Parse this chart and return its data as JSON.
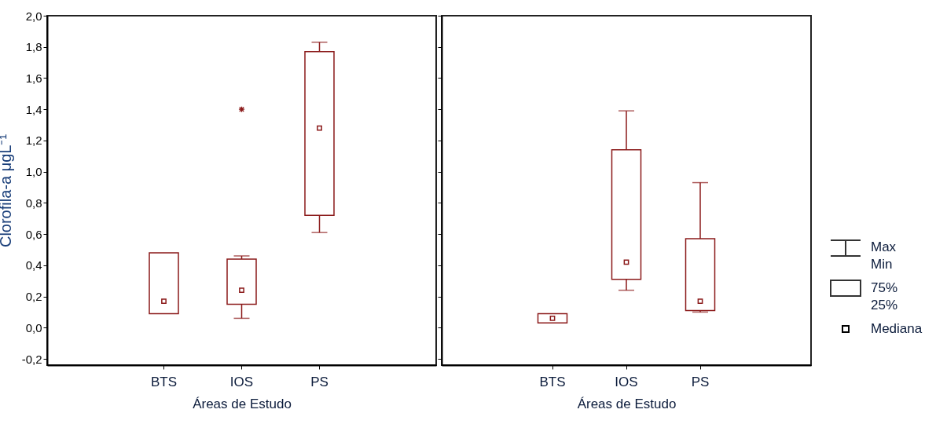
{
  "chart_data": [
    {
      "type": "box",
      "xlabel": "Áreas de Estudo",
      "ylabel": "Clorofila-a μgL⁻¹",
      "categories": [
        "BTS",
        "IOS",
        "PS"
      ],
      "color": "#8b1a1a",
      "marker": "square",
      "grid": false,
      "ylim": [
        -0.24,
        2.0
      ],
      "yticks": [
        {
          "value": -0.2,
          "label": "-0,2"
        },
        {
          "value": 0,
          "label": "0,0"
        },
        {
          "value": 0.2,
          "label": "0,2"
        },
        {
          "value": 0.4,
          "label": "0,4"
        },
        {
          "value": 0.6,
          "label": "0,6"
        },
        {
          "value": 0.8,
          "label": "0,8"
        },
        {
          "value": 1.0,
          "label": "1,0"
        },
        {
          "value": 1.2,
          "label": "1,2"
        },
        {
          "value": 1.4,
          "label": "1,4"
        },
        {
          "value": 1.6,
          "label": "1,6"
        },
        {
          "value": 1.8,
          "label": "1,8"
        },
        {
          "value": 2.0,
          "label": "2,0"
        }
      ],
      "boxes": [
        {
          "low": 0.09,
          "q1": 0.09,
          "median": 0.17,
          "q3": 0.48,
          "high": 0.48
        },
        {
          "low": 0.06,
          "q1": 0.15,
          "median": 0.24,
          "q3": 0.44,
          "high": 0.46,
          "outliers": [
            1.4
          ]
        },
        {
          "low": 0.61,
          "q1": 0.72,
          "median": 1.28,
          "q3": 1.77,
          "high": 1.83
        }
      ]
    },
    {
      "type": "box",
      "xlabel": "Áreas de Estudo",
      "categories": [
        "BTS",
        "IOS",
        "PS"
      ],
      "color": "#8b1a1a",
      "marker": "square",
      "grid": false,
      "tick_labels": "x",
      "ylim": [
        -0.24,
        2.0
      ],
      "yticks": [
        {
          "value": -0.2,
          "label": null
        },
        {
          "value": 0,
          "label": null
        },
        {
          "value": 0.2,
          "label": null
        },
        {
          "value": 0.4,
          "label": null
        },
        {
          "value": 0.6,
          "label": null
        },
        {
          "value": 0.8,
          "label": null
        },
        {
          "value": 1.0,
          "label": null
        },
        {
          "value": 1.2,
          "label": null
        },
        {
          "value": 1.4,
          "label": null
        },
        {
          "value": 1.6,
          "label": null
        },
        {
          "value": 1.8,
          "label": null
        },
        {
          "value": 2.0,
          "label": null
        }
      ],
      "boxes": [
        {
          "low": 0.03,
          "q1": 0.03,
          "median": 0.06,
          "q3": 0.09,
          "high": 0.09
        },
        {
          "low": 0.24,
          "q1": 0.31,
          "median": 0.42,
          "q3": 1.14,
          "high": 1.39
        },
        {
          "low": 0.1,
          "q1": 0.11,
          "median": 0.17,
          "q3": 0.57,
          "high": 0.93
        }
      ],
      "annotations": [
        "Max",
        "Min",
        "75%",
        "25%",
        "Mediana"
      ]
    }
  ]
}
